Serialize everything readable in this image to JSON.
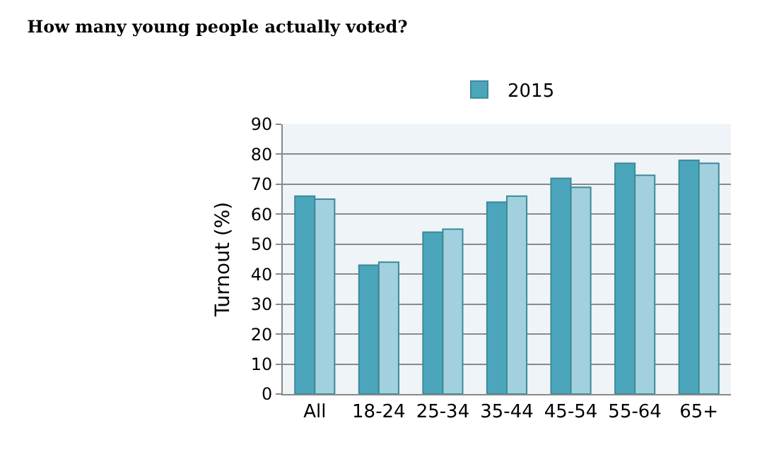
{
  "chart_data": {
    "type": "bar",
    "title": "How many young people actually voted?",
    "ylabel": "Turnout (%)",
    "categories": [
      "All",
      "18-24",
      "25-34",
      "35-44",
      "45-54",
      "55-64",
      "65+"
    ],
    "series": [
      {
        "name": "2015",
        "color": "#4ba6bb",
        "values": [
          66,
          43,
          54,
          64,
          72,
          77,
          78
        ]
      },
      {
        "color": "#a3d0de",
        "values": [
          65,
          44,
          55,
          66,
          69,
          73,
          77
        ]
      }
    ],
    "ylim": [
      0,
      90
    ],
    "yticks": [
      0,
      10,
      20,
      30,
      40,
      50,
      60,
      70,
      80,
      90
    ],
    "grid": "y",
    "legend": "top"
  }
}
